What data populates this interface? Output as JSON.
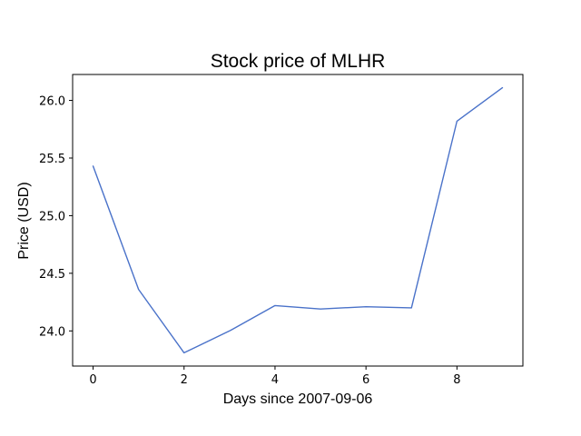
{
  "chart_data": {
    "type": "line",
    "title": "Stock price of MLHR",
    "xlabel": "Days since 2007-09-06",
    "ylabel": "Price (USD)",
    "x": [
      0,
      1,
      2,
      3,
      4,
      5,
      6,
      7,
      8,
      9
    ],
    "series": [
      {
        "values": [
          25.43,
          24.36,
          23.81,
          24.0,
          24.22,
          24.19,
          24.21,
          24.2,
          25.82,
          26.11
        ],
        "color": "#4a72c9"
      }
    ],
    "xticks": [
      0,
      2,
      4,
      6,
      8
    ],
    "yticks": [
      24.0,
      24.5,
      25.0,
      25.5,
      26.0
    ],
    "xtick_labels": [
      "0",
      "2",
      "4",
      "6",
      "8"
    ],
    "ytick_labels": [
      "24.0",
      "24.5",
      "25.0",
      "25.5",
      "26.0"
    ],
    "xlim": [
      -0.45,
      9.45
    ],
    "ylim": [
      23.695,
      26.225
    ],
    "grid": false
  }
}
